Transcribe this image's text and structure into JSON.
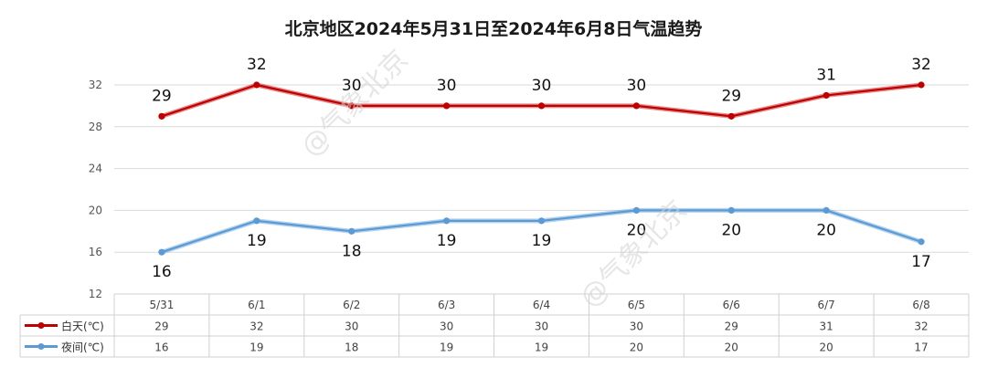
{
  "chart_data": {
    "type": "line",
    "title": "北京地区2024年5月31日至2024年6月8日气温趋势",
    "categories": [
      "5/31",
      "6/1",
      "6/2",
      "6/3",
      "6/4",
      "6/5",
      "6/6",
      "6/7",
      "6/8"
    ],
    "series": [
      {
        "name": "白天(℃)",
        "values": [
          29,
          32,
          30,
          30,
          30,
          30,
          29,
          31,
          32
        ],
        "color": "#c00000"
      },
      {
        "name": "夜间(℃)",
        "values": [
          16,
          19,
          18,
          19,
          19,
          20,
          20,
          20,
          17
        ],
        "color": "#5b9bd5"
      }
    ],
    "ylim": [
      12,
      32
    ],
    "yticks": [
      12,
      16,
      20,
      24,
      28,
      32
    ],
    "grid": true,
    "data_labels": true,
    "data_table": true,
    "legend": "data-table-left"
  },
  "watermark": "@气象北京"
}
